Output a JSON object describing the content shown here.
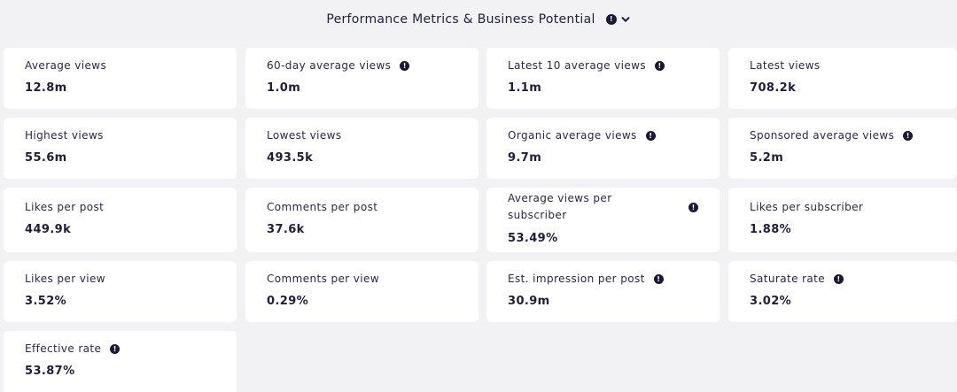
{
  "section": {
    "title": "Performance Metrics & Business Potential",
    "info_icon": "info-icon",
    "toggle_icon": "chevron-down-icon"
  },
  "metrics": [
    {
      "label": "Average views",
      "value": "12.8m",
      "has_info": false
    },
    {
      "label": "60-day average views",
      "value": "1.0m",
      "has_info": true
    },
    {
      "label": "Latest 10 average views",
      "value": "1.1m",
      "has_info": true
    },
    {
      "label": "Latest views",
      "value": "708.2k",
      "has_info": false
    },
    {
      "label": "Highest views",
      "value": "55.6m",
      "has_info": false
    },
    {
      "label": "Lowest views",
      "value": "493.5k",
      "has_info": false
    },
    {
      "label": "Organic average views",
      "value": "9.7m",
      "has_info": true
    },
    {
      "label": "Sponsored average views",
      "value": "5.2m",
      "has_info": true
    },
    {
      "label": "Likes per post",
      "value": "449.9k",
      "has_info": false
    },
    {
      "label": "Comments per post",
      "value": "37.6k",
      "has_info": false
    },
    {
      "label": "Average views per subscriber",
      "value": "53.49%",
      "has_info": true
    },
    {
      "label": "Likes per subscriber",
      "value": "1.88%",
      "has_info": false
    },
    {
      "label": "Likes per view",
      "value": "3.52%",
      "has_info": false
    },
    {
      "label": "Comments per view",
      "value": "0.29%",
      "has_info": false
    },
    {
      "label": "Est. impression per post",
      "value": "30.9m",
      "has_info": true
    },
    {
      "label": "Saturate rate",
      "value": "3.02%",
      "has_info": true
    },
    {
      "label": "Effective rate",
      "value": "53.87%",
      "has_info": true
    }
  ]
}
